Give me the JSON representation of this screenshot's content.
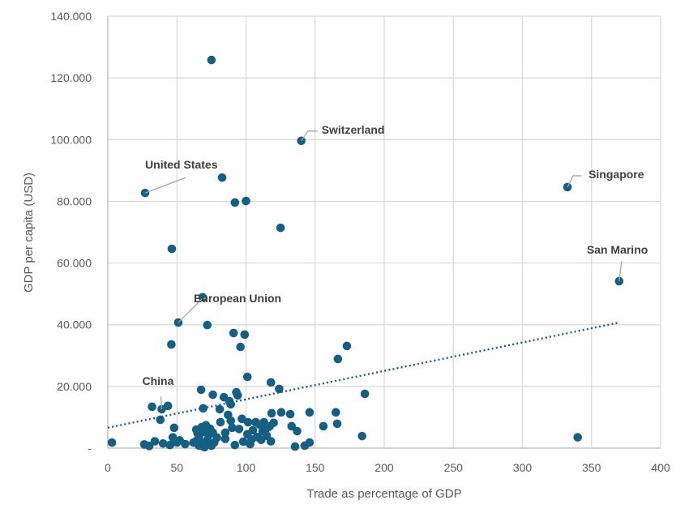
{
  "chart_data": {
    "type": "scatter",
    "title": "",
    "xlabel": "Trade as percentage of GDP",
    "ylabel": "GDP per capita (USD)",
    "xlim": [
      0,
      400
    ],
    "ylim": [
      0,
      140000
    ],
    "grid": true,
    "x_ticks": [
      0,
      50,
      100,
      150,
      200,
      250,
      300,
      350,
      400
    ],
    "x_tick_labels": [
      "0",
      "50",
      "100",
      "150",
      "200",
      "250",
      "300",
      "350",
      "400"
    ],
    "y_ticks": [
      0,
      20000,
      40000,
      60000,
      80000,
      100000,
      120000,
      140000
    ],
    "y_tick_labels": [
      "-",
      "20.000",
      "40.000",
      "60.000",
      "80.000",
      "100.000",
      "120.000",
      "140.000"
    ],
    "series": [
      {
        "name": "Countries",
        "color": "#156082",
        "points": [
          [
            75,
            125800
          ],
          [
            140,
            99600
          ],
          [
            27,
            82700
          ],
          [
            82.7,
            87700
          ],
          [
            92,
            79600
          ],
          [
            100,
            80100
          ],
          [
            125,
            71400
          ],
          [
            46.3,
            64600
          ],
          [
            332.6,
            84600
          ],
          [
            370,
            54100
          ],
          [
            68.6,
            48900
          ],
          [
            51,
            40700
          ],
          [
            72,
            39900
          ],
          [
            91,
            37300
          ],
          [
            99,
            36800
          ],
          [
            96,
            32800
          ],
          [
            46,
            33600
          ],
          [
            101,
            23100
          ],
          [
            118,
            21300
          ],
          [
            124,
            19200
          ],
          [
            173,
            33100
          ],
          [
            166.5,
            28900
          ],
          [
            186,
            17600
          ],
          [
            340,
            3500
          ],
          [
            3,
            1800
          ],
          [
            32,
            13400
          ],
          [
            39,
            12600
          ],
          [
            43.5,
            13700
          ],
          [
            38,
            9200
          ],
          [
            48,
            6600
          ],
          [
            26.4,
            1200
          ],
          [
            34,
            2200
          ],
          [
            45,
            1000
          ],
          [
            50,
            1800
          ],
          [
            56,
            1300
          ],
          [
            30,
            700
          ],
          [
            40,
            1500
          ],
          [
            47,
            3500
          ],
          [
            52,
            2500
          ],
          [
            67.5,
            18900
          ],
          [
            76,
            17300
          ],
          [
            84,
            16500
          ],
          [
            93,
            18100
          ],
          [
            94,
            17100
          ],
          [
            69,
            12900
          ],
          [
            81,
            12600
          ],
          [
            89,
            14200
          ],
          [
            88,
            15200
          ],
          [
            118.5,
            11300
          ],
          [
            125.5,
            11600
          ],
          [
            132,
            11000
          ],
          [
            146,
            11600
          ],
          [
            133,
            7100
          ],
          [
            137,
            5500
          ],
          [
            156,
            7100
          ],
          [
            166,
            7900
          ],
          [
            165,
            11600
          ],
          [
            184,
            3900
          ],
          [
            135.5,
            500
          ],
          [
            142.5,
            800
          ],
          [
            146,
            1800
          ],
          [
            81.5,
            8400
          ],
          [
            89,
            8900
          ],
          [
            90,
            6600
          ],
          [
            85,
            5000
          ],
          [
            101.5,
            8400
          ],
          [
            107,
            8400
          ],
          [
            113,
            8400
          ],
          [
            114,
            6000
          ],
          [
            115,
            4000
          ],
          [
            101,
            4500
          ],
          [
            98,
            2100
          ],
          [
            92,
            1000
          ],
          [
            77,
            1800
          ],
          [
            79,
            3400
          ],
          [
            64,
            6000
          ],
          [
            66,
            3500
          ],
          [
            68,
            1500
          ],
          [
            70,
            5200
          ],
          [
            72,
            2600
          ],
          [
            74,
            6300
          ],
          [
            75,
            800
          ],
          [
            66,
            800
          ],
          [
            70,
            300
          ],
          [
            73,
            4200
          ],
          [
            64,
            2300
          ],
          [
            68,
            6800
          ],
          [
            76,
            5000
          ],
          [
            71,
            7400
          ],
          [
            65,
            4800
          ],
          [
            110,
            7600
          ],
          [
            117,
            7000
          ],
          [
            120,
            8200
          ],
          [
            108,
            3600
          ],
          [
            111,
            2700
          ],
          [
            103,
            1300
          ],
          [
            105,
            5800
          ],
          [
            95,
            6200
          ],
          [
            97,
            9500
          ],
          [
            87,
            10800
          ],
          [
            85,
            3000
          ],
          [
            62,
            1800
          ],
          [
            118,
            2200
          ],
          [
            112,
            5500
          ],
          [
            104,
            2800
          ]
        ]
      }
    ],
    "trendline": {
      "type": "linear",
      "style": "dotted",
      "x_range": [
        0,
        370
      ],
      "y_start": 6600,
      "y_end": 40700
    },
    "annotations": [
      {
        "label": "Switzerland",
        "x": 140,
        "y": 99600
      },
      {
        "label": "United States",
        "x": 27,
        "y": 82700
      },
      {
        "label": "Singapore",
        "x": 332.6,
        "y": 84600
      },
      {
        "label": "San Marino",
        "x": 370,
        "y": 54100
      },
      {
        "label": "European Union",
        "x": 51,
        "y": 40700
      },
      {
        "label": "China",
        "x": 39,
        "y": 12600
      }
    ]
  }
}
